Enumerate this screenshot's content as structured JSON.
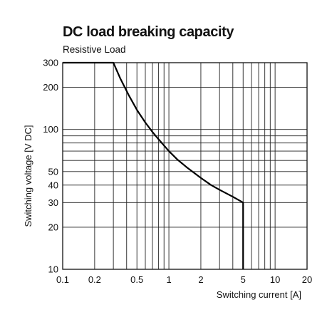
{
  "chart_data": {
    "type": "line",
    "title": "DC load breaking capacity",
    "subtitle": "Resistive Load",
    "xlabel": "Switching current [A]",
    "ylabel": "Switching voltage [V DC]",
    "x_scale": "log",
    "y_scale": "log",
    "xlim": [
      0.1,
      20
    ],
    "ylim": [
      10,
      300
    ],
    "grid": true,
    "x_ticks": [
      0.1,
      0.2,
      0.5,
      1,
      2,
      5,
      10,
      20
    ],
    "x_tick_labels": [
      "0.1",
      "0.2",
      "0.5",
      "1",
      "2",
      "5",
      "10",
      "20"
    ],
    "y_ticks": [
      10,
      20,
      30,
      40,
      50,
      100,
      200,
      300
    ],
    "y_tick_labels": [
      "10",
      "20",
      "30",
      "40",
      "50",
      "100",
      "200",
      "300"
    ],
    "x_gridlines": [
      0.1,
      0.2,
      0.3,
      0.4,
      0.5,
      0.6,
      0.7,
      0.8,
      0.9,
      1,
      2,
      3,
      4,
      5,
      6,
      7,
      8,
      9,
      10,
      20
    ],
    "y_gridlines": [
      10,
      20,
      30,
      40,
      50,
      60,
      70,
      80,
      90,
      100,
      200,
      300
    ],
    "series": [
      {
        "x": [
          0.1,
          0.3,
          0.35,
          0.42,
          0.5,
          0.6,
          0.7,
          0.8,
          1.0,
          1.2,
          1.5,
          2.0,
          2.5,
          3.0,
          4.0,
          5.0,
          5.0
        ],
        "y": [
          300,
          300,
          230,
          175,
          138,
          112,
          96,
          85,
          70,
          61,
          53,
          45,
          40,
          37,
          33,
          30,
          10
        ]
      }
    ]
  }
}
